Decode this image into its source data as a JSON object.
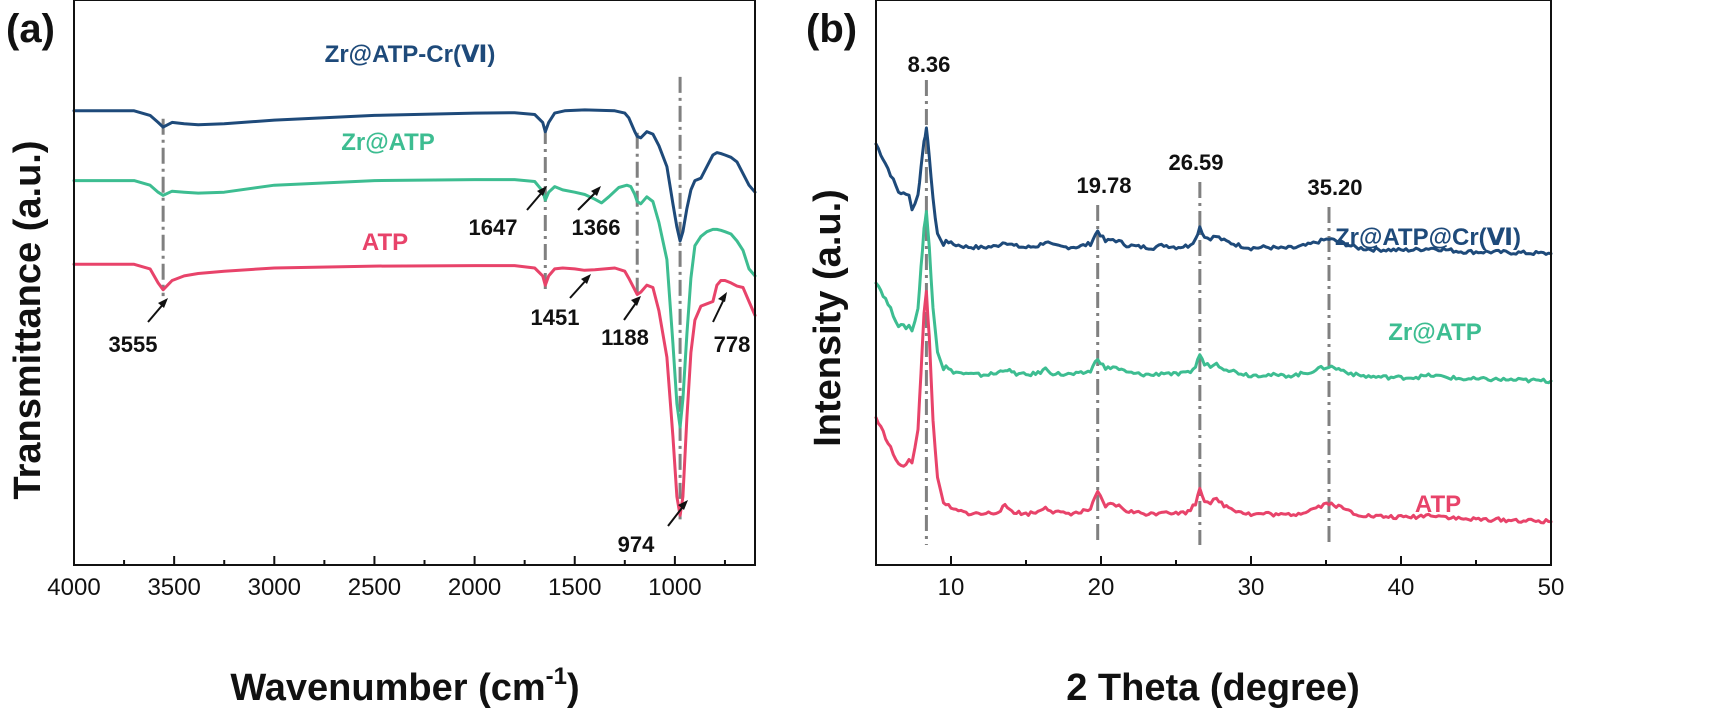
{
  "colors": {
    "navy": "#1e4a7a",
    "teal": "#3dbd91",
    "pink": "#e8436a",
    "guide": "#808080",
    "axis": "#111111"
  },
  "chart_data": [
    {
      "id": "a",
      "panel_label": "(a)",
      "type": "line",
      "xlabel": "Wavenumber (cm",
      "xlabel_sup": "-1",
      "xlabel_close": ")",
      "ylabel": "Transmittance (a.u.)",
      "xlim": [
        4000,
        600
      ],
      "ylim": [
        0,
        100
      ],
      "xticks": [
        4000,
        3500,
        3000,
        2500,
        2000,
        1500,
        1000
      ],
      "guide_lines": [
        3555,
        1647,
        1188,
        974
      ],
      "series": [
        {
          "name": "Zr@ATP-Cr(Ⅵ)",
          "color_key": "navy",
          "x": [
            4000,
            3700,
            3620,
            3580,
            3555,
            3510,
            3450,
            3380,
            3250,
            3000,
            2500,
            2000,
            1800,
            1700,
            1660,
            1647,
            1630,
            1600,
            1550,
            1450,
            1300,
            1250,
            1230,
            1200,
            1188,
            1170,
            1140,
            1110,
            1080,
            1040,
            1010,
            990,
            974,
            960,
            940,
            920,
            900,
            870,
            840,
            810,
            790,
            770,
            750,
            720,
            690,
            660,
            630,
            600
          ],
          "y": [
            88,
            88,
            87,
            85.5,
            84.5,
            85.5,
            85.2,
            85,
            85.2,
            86,
            87,
            87.5,
            87.6,
            87.2,
            85.5,
            83.5,
            85.5,
            87.5,
            88,
            88.2,
            88,
            87.5,
            86.5,
            83.5,
            82.5,
            82.2,
            83.5,
            83,
            80.5,
            76,
            68,
            63,
            60,
            62,
            67,
            71,
            73,
            73.5,
            76,
            78.5,
            79,
            78.8,
            78.5,
            78,
            77,
            74.5,
            72,
            70.5
          ]
        },
        {
          "name": "Zr@ATP",
          "color_key": "teal",
          "x": [
            4000,
            3700,
            3620,
            3580,
            3555,
            3510,
            3450,
            3380,
            3250,
            3000,
            2500,
            2000,
            1800,
            1700,
            1660,
            1647,
            1630,
            1600,
            1560,
            1500,
            1450,
            1400,
            1366,
            1330,
            1280,
            1240,
            1220,
            1200,
            1188,
            1170,
            1140,
            1110,
            1080,
            1040,
            1010,
            990,
            974,
            960,
            940,
            920,
            900,
            870,
            840,
            810,
            790,
            770,
            750,
            720,
            690,
            660,
            630,
            600
          ],
          "y": [
            73,
            73,
            72,
            70.5,
            69.8,
            70.7,
            70.5,
            70.3,
            70.5,
            72,
            73,
            73.2,
            73.2,
            72.8,
            70.7,
            68.8,
            70.5,
            71.7,
            71,
            70.5,
            70,
            69,
            68.2,
            69.5,
            71.5,
            72,
            71.7,
            70,
            68.5,
            68,
            69.5,
            68.5,
            64,
            56,
            38,
            25,
            20,
            26,
            40,
            52,
            59,
            61,
            62,
            62.5,
            62.5,
            62.3,
            62,
            61.5,
            60,
            58,
            54,
            52.5
          ]
        },
        {
          "name": "ATP",
          "color_key": "pink",
          "x": [
            4000,
            3700,
            3620,
            3580,
            3555,
            3510,
            3450,
            3380,
            3250,
            3000,
            2500,
            2000,
            1800,
            1700,
            1660,
            1647,
            1630,
            1600,
            1560,
            1500,
            1451,
            1400,
            1300,
            1250,
            1230,
            1200,
            1188,
            1170,
            1140,
            1110,
            1080,
            1040,
            1010,
            990,
            974,
            960,
            940,
            920,
            900,
            870,
            840,
            810,
            790,
            770,
            750,
            720,
            690,
            660,
            630,
            600
          ],
          "y": [
            55,
            55,
            54,
            51,
            49.5,
            51.5,
            52.5,
            53,
            53.5,
            54.2,
            54.6,
            54.7,
            54.7,
            54.2,
            52.5,
            50.5,
            52.5,
            54,
            54.2,
            54,
            53.7,
            53.8,
            54.2,
            53.5,
            52,
            49.5,
            48.5,
            49,
            50.5,
            50,
            45,
            35,
            18,
            5,
            1,
            5,
            22,
            36,
            43,
            46,
            46.5,
            47,
            50.5,
            51.5,
            51.5,
            51,
            50.3,
            50,
            47,
            44
          ]
        }
      ],
      "series_labels": [
        "Zr@ATP-Cr(Ⅵ)",
        "Zr@ATP",
        "ATP"
      ],
      "annotations": [
        "3555",
        "1647",
        "1366",
        "1451",
        "1188",
        "974",
        "778"
      ]
    },
    {
      "id": "b",
      "panel_label": "(b)",
      "type": "line",
      "xlabel": "2 Theta (degree)",
      "ylabel": "Intensity (a.u.)",
      "xlim": [
        5,
        50
      ],
      "ylim": [
        0,
        100
      ],
      "xticks": [
        10,
        20,
        30,
        40,
        50
      ],
      "guide_lines": [
        8.36,
        19.78,
        26.59,
        35.2
      ],
      "peak_labels": [
        "8.36",
        "19.78",
        "26.59",
        "35.20"
      ],
      "base_pattern": {
        "x": [
          5,
          5.8,
          6.5,
          7,
          7.4,
          7.8,
          8.0,
          8.2,
          8.36,
          8.55,
          8.8,
          9.1,
          9.5,
          10,
          11,
          12,
          13,
          13.6,
          14.2,
          15,
          15.8,
          16.3,
          16.8,
          17.5,
          18.5,
          19.3,
          19.78,
          20.3,
          20.8,
          21.2,
          21.7,
          22.5,
          23.5,
          24.2,
          25,
          25.8,
          26.3,
          26.59,
          26.9,
          27.3,
          27.7,
          28.2,
          29,
          30,
          31,
          32,
          33,
          33.8,
          34.5,
          35.2,
          36,
          37,
          38,
          39,
          40,
          41,
          42,
          43,
          44,
          45,
          46,
          47,
          48,
          49,
          50
        ],
        "y": [
          13,
          10,
          7,
          8,
          10,
          18,
          30,
          42,
          47,
          38,
          22,
          10,
          5,
          3.5,
          2.8,
          2.6,
          2.9,
          4,
          3,
          2.6,
          3,
          4,
          3,
          2.7,
          2.8,
          3.5,
          6.5,
          4,
          4.5,
          4,
          3.2,
          2.8,
          2.6,
          3.2,
          2.7,
          3,
          4.5,
          7.5,
          5,
          4.8,
          5.2,
          4.2,
          3.3,
          2.5,
          2.7,
          2.4,
          2.6,
          3.2,
          4,
          4.6,
          3.8,
          2.6,
          2.2,
          2.1,
          2,
          2.1,
          2.5,
          2.1,
          1.7,
          1.6,
          1.6,
          1.5,
          1.4,
          1.3,
          1.2
        ]
      },
      "series": [
        {
          "name": "Zr@ATP@Cr(Ⅵ)",
          "color_key": "navy",
          "offset": 58,
          "scale": 0.55,
          "peak_scale": 0.52,
          "lift": 12
        },
        {
          "name": "Zr@ATP",
          "color_key": "teal",
          "offset": 32,
          "scale": 0.55,
          "peak_scale": 0.72,
          "lift": 10
        },
        {
          "name": "ATP",
          "color_key": "pink",
          "offset": 3,
          "scale": 0.7,
          "peak_scale": 1.0,
          "lift": 8
        }
      ],
      "series_labels": [
        "Zr@ATP@Cr(Ⅵ)",
        "Zr@ATP",
        "ATP"
      ]
    }
  ]
}
